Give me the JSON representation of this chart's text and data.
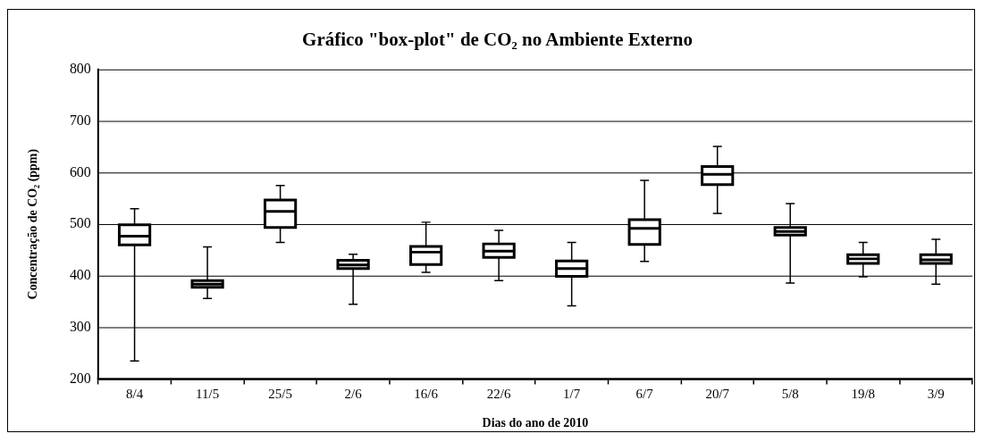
{
  "chart_data": {
    "type": "box",
    "title": "Gráfico \"box-plot\" de CO₂ no Ambiente Externo",
    "xlabel": "Dias do ano de 2010",
    "ylabel": "Concentração de CO₂ (ppm)",
    "categories": [
      "8/4",
      "11/5",
      "25/5",
      "2/6",
      "16/6",
      "22/6",
      "1/7",
      "6/7",
      "20/7",
      "5/8",
      "19/8",
      "3/9"
    ],
    "boxes": [
      {
        "low": 235,
        "q1": 460,
        "median": 477,
        "q3": 499,
        "high": 530
      },
      {
        "low": 356,
        "q1": 378,
        "median": 384,
        "q3": 391,
        "high": 456
      },
      {
        "low": 465,
        "q1": 494,
        "median": 525,
        "q3": 547,
        "high": 575
      },
      {
        "low": 345,
        "q1": 414,
        "median": 421,
        "q3": 430,
        "high": 442
      },
      {
        "low": 407,
        "q1": 422,
        "median": 446,
        "q3": 457,
        "high": 504
      },
      {
        "low": 391,
        "q1": 436,
        "median": 448,
        "q3": 462,
        "high": 488
      },
      {
        "low": 342,
        "q1": 399,
        "median": 414,
        "q3": 429,
        "high": 465
      },
      {
        "low": 428,
        "q1": 461,
        "median": 492,
        "q3": 509,
        "high": 585
      },
      {
        "low": 521,
        "q1": 577,
        "median": 597,
        "q3": 612,
        "high": 651
      },
      {
        "low": 386,
        "q1": 479,
        "median": 486,
        "q3": 494,
        "high": 540
      },
      {
        "low": 398,
        "q1": 424,
        "median": 433,
        "q3": 441,
        "high": 465
      },
      {
        "low": 384,
        "q1": 424,
        "median": 431,
        "q3": 441,
        "high": 471
      }
    ],
    "color": "#ffffff",
    "ylim": [
      200,
      800
    ],
    "yticks": [
      200,
      300,
      400,
      500,
      600,
      700,
      800
    ],
    "grid": "y"
  }
}
